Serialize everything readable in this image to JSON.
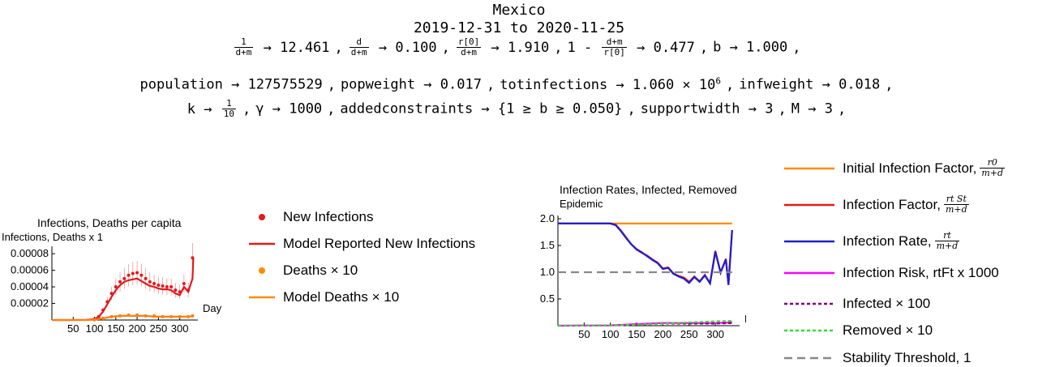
{
  "header": {
    "country": "Mexico",
    "date_range": "2019-12-31 to 2020-11-25"
  },
  "params": {
    "line1": [
      {
        "num": "1",
        "den": "d+m",
        "value": "12.461"
      },
      {
        "num": "d",
        "den": "d+m",
        "value": "0.100"
      },
      {
        "num": "r[0]",
        "den": "d+m",
        "value": "1.910"
      },
      {
        "prefix": "1 -",
        "num": "d+m",
        "den": "r[0]",
        "value": "0.477"
      },
      {
        "name": "b",
        "value": "1.000"
      }
    ],
    "line2": [
      {
        "name": "population",
        "value": "127575529"
      },
      {
        "name": "popweight",
        "value": "0.017"
      },
      {
        "name": "totinfections",
        "value": "1.060 × 10",
        "sup": "6"
      },
      {
        "name": "infweight",
        "value": "0.018"
      }
    ],
    "line3": [
      {
        "name": "k",
        "num": "1",
        "den": "10"
      },
      {
        "name": "γ",
        "value": "1000"
      },
      {
        "name": "addedconstraints",
        "value": "{1 ≥ b ≥ 0.050}"
      },
      {
        "name": "supportwidth",
        "value": "3"
      },
      {
        "name": "M",
        "value": "3"
      }
    ],
    "arrow": "→",
    "comma": ","
  },
  "chart_data": [
    {
      "type": "scatter",
      "title": "Infections, Deaths per capita",
      "ylabel": "Infections, Deaths x 1",
      "xlabel": "Day",
      "xlim": [
        0,
        335
      ],
      "ylim": [
        0,
        8.5e-05
      ],
      "xticks": [
        50,
        100,
        150,
        200,
        250,
        300
      ],
      "yticks": [
        2e-05,
        4e-05,
        6e-05,
        8e-05
      ],
      "ytick_labels": [
        "0.00002",
        "0.00004",
        "0.00006",
        "0.00008"
      ],
      "series": [
        {
          "name": "New Infections",
          "style": "points",
          "color": "#e41a1c",
          "x": [
            100,
            110,
            120,
            130,
            140,
            150,
            160,
            170,
            180,
            190,
            200,
            210,
            220,
            230,
            240,
            250,
            260,
            270,
            280,
            290,
            300,
            310,
            320,
            330
          ],
          "y": [
            1e-06,
            4e-06,
            1.2e-05,
            2.2e-05,
            3.2e-05,
            4e-05,
            4.6e-05,
            5e-05,
            5.4e-05,
            5.6e-05,
            5.7e-05,
            5.4e-05,
            5e-05,
            4.6e-05,
            4.4e-05,
            4.2e-05,
            4.1e-05,
            4e-05,
            4e-05,
            3.6e-05,
            3.4e-05,
            4.4e-05,
            3.6e-05,
            7.5e-05
          ]
        },
        {
          "name": "Model Reported New Infections",
          "style": "line",
          "color": "#e41a1c",
          "x": [
            0,
            40,
            80,
            100,
            110,
            120,
            130,
            140,
            150,
            160,
            170,
            180,
            190,
            200,
            210,
            220,
            230,
            240,
            250,
            260,
            270,
            280,
            290,
            300,
            310,
            320,
            330,
            332
          ],
          "y": [
            0,
            0,
            2e-07,
            1e-06,
            4e-06,
            1e-05,
            1.9e-05,
            2.8e-05,
            3.6e-05,
            4.2e-05,
            4.6e-05,
            4.8e-05,
            4.9e-05,
            5e-05,
            4.7e-05,
            4.4e-05,
            4.1e-05,
            4e-05,
            3.8e-05,
            3.7e-05,
            3.7e-05,
            3.6e-05,
            3.2e-05,
            3e-05,
            4e-05,
            3.4e-05,
            5e-05,
            7.5e-05
          ]
        },
        {
          "name": "Deaths × 10",
          "style": "points",
          "color": "#ff7f0e",
          "x": [
            100,
            120,
            140,
            160,
            180,
            200,
            220,
            240,
            260,
            280,
            300,
            320,
            330
          ],
          "y": [
            3e-07,
            2e-06,
            4e-06,
            5e-06,
            6e-06,
            6e-06,
            5e-06,
            5e-06,
            4e-06,
            4e-06,
            4e-06,
            4e-06,
            5e-06
          ]
        },
        {
          "name": "Model Deaths × 10",
          "style": "line",
          "color": "#ff7f0e",
          "x": [
            0,
            80,
            100,
            120,
            140,
            160,
            180,
            200,
            220,
            240,
            260,
            280,
            300,
            320,
            332
          ],
          "y": [
            0,
            0,
            3e-07,
            2e-06,
            4e-06,
            5e-06,
            5e-06,
            5e-06,
            5e-06,
            4e-06,
            4e-06,
            4e-06,
            4e-06,
            4e-06,
            5e-06
          ]
        }
      ],
      "legend": "right"
    },
    {
      "type": "line",
      "title": "Infection Rates, Infected, Removed",
      "ylabel": "Epidemic",
      "xlabel": "Day",
      "xlim": [
        0,
        340
      ],
      "ylim": [
        0,
        2.0
      ],
      "xticks": [
        50,
        100,
        150,
        200,
        250,
        300
      ],
      "yticks": [
        0.5,
        1.0,
        1.5,
        2.0
      ],
      "ytick_labels": [
        "0.5",
        "1.0",
        "1.5",
        "2.0"
      ],
      "series": [
        {
          "name": "Initial Infection Factor",
          "color": "#ff8c00",
          "dash": "",
          "x": [
            0,
            332
          ],
          "y": [
            1.91,
            1.91
          ]
        },
        {
          "name": "Infection Factor",
          "color": "#e41a1c",
          "dash": "",
          "x": [
            0,
            100,
            110,
            120,
            130,
            140,
            150,
            160,
            170,
            180,
            190,
            200,
            210,
            220,
            230,
            240,
            250,
            260,
            270,
            280,
            290,
            300,
            310,
            320,
            325,
            332
          ],
          "y": [
            1.91,
            1.91,
            1.89,
            1.78,
            1.65,
            1.52,
            1.42,
            1.36,
            1.31,
            1.24,
            1.18,
            1.07,
            1.09,
            0.98,
            0.93,
            0.9,
            0.82,
            0.92,
            0.83,
            0.95,
            0.8,
            1.4,
            1.0,
            1.25,
            0.78,
            1.78
          ]
        },
        {
          "name": "Infection Rate",
          "color": "#1f1fcc",
          "dash": "",
          "x": [
            0,
            100,
            110,
            120,
            130,
            140,
            150,
            160,
            170,
            180,
            190,
            200,
            210,
            220,
            230,
            240,
            250,
            260,
            270,
            280,
            290,
            300,
            310,
            320,
            325,
            332
          ],
          "y": [
            1.91,
            1.91,
            1.88,
            1.77,
            1.64,
            1.52,
            1.43,
            1.37,
            1.3,
            1.23,
            1.17,
            1.06,
            1.08,
            0.97,
            0.92,
            0.88,
            0.8,
            0.91,
            0.82,
            0.94,
            0.79,
            1.38,
            0.99,
            1.24,
            0.76,
            1.79
          ]
        },
        {
          "name": "Infection Risk",
          "color": "#ff00ff",
          "dash": "",
          "x": [
            0,
            100,
            150,
            200,
            250,
            300,
            332
          ],
          "y": [
            0,
            0.005,
            0.03,
            0.05,
            0.05,
            0.05,
            0.06
          ]
        },
        {
          "name": "Infected × 100",
          "color": "#800080",
          "dash": "4,3",
          "x": [
            0,
            100,
            150,
            200,
            250,
            300,
            332
          ],
          "y": [
            0,
            0.005,
            0.02,
            0.04,
            0.04,
            0.04,
            0.05
          ]
        },
        {
          "name": "Removed × 10",
          "color": "#33dd33",
          "dash": "4,3",
          "x": [
            0,
            100,
            150,
            200,
            250,
            300,
            332
          ],
          "y": [
            0,
            0.003,
            0.02,
            0.04,
            0.06,
            0.08,
            0.09
          ]
        },
        {
          "name": "Stability Threshold, 1",
          "color": "#888888",
          "dash": "10,6",
          "x": [
            0,
            332
          ],
          "y": [
            1.0,
            1.0
          ]
        }
      ],
      "legend": "right"
    }
  ],
  "legend1": [
    {
      "label": "New Infections",
      "kind": "dot",
      "color": "#e41a1c"
    },
    {
      "label": "Model Reported New Infections",
      "kind": "line",
      "color": "#e41a1c"
    },
    {
      "label": "Deaths × 10",
      "kind": "dot",
      "color": "#ff8c00"
    },
    {
      "label": "Model Deaths × 10",
      "kind": "line",
      "color": "#ff8c00"
    }
  ],
  "legend2": [
    {
      "label": "Initial Infection Factor,",
      "color": "#ff8c00",
      "dash": "",
      "num": "r0",
      "den": "m+d"
    },
    {
      "label": "Infection Factor,",
      "color": "#e41a1c",
      "dash": "",
      "num": "rt St",
      "den": "m+d"
    },
    {
      "label": "Infection Rate,",
      "color": "#1f1fcc",
      "dash": "",
      "num": "rt",
      "den": "m+d"
    },
    {
      "label": "Infection Risk, rtFt x 1000",
      "color": "#ff00ff",
      "dash": ""
    },
    {
      "label": "Infected × 100",
      "color": "#800080",
      "dash": "4,3"
    },
    {
      "label": "Removed × 10",
      "color": "#33dd33",
      "dash": "4,3"
    },
    {
      "label": "Stability Threshold, 1",
      "color": "#888888",
      "dash": "10,6"
    }
  ]
}
